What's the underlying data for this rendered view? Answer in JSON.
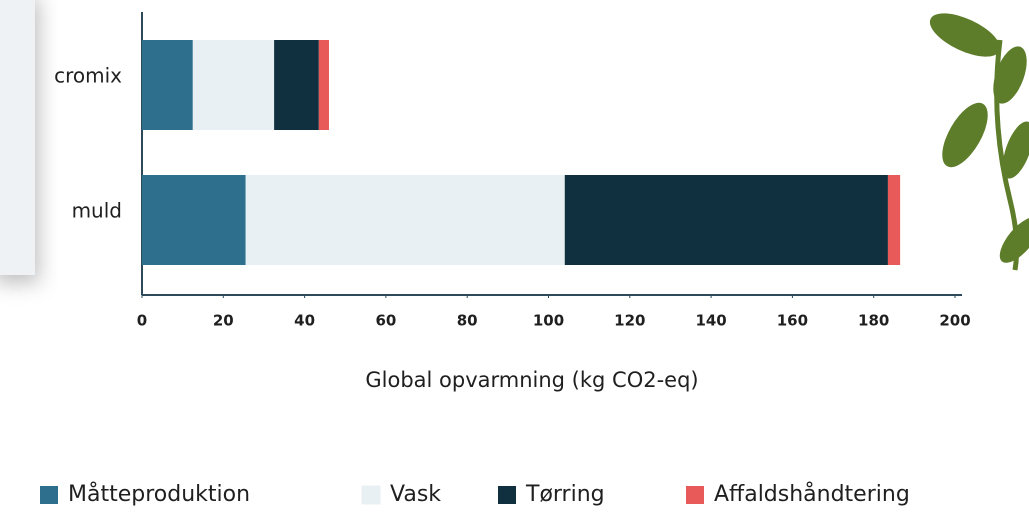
{
  "chart_data": {
    "type": "stacked-barh",
    "categories": [
      "cromix",
      "muld"
    ],
    "series": [
      {
        "name": "Måtteproduktion",
        "color": "#2e6f8e",
        "values": [
          12.5,
          25.5
        ]
      },
      {
        "name": "Vask",
        "color": "#e9f0f3",
        "values": [
          20,
          78.5
        ]
      },
      {
        "name": "Tørring",
        "color": "#11303f",
        "values": [
          11,
          79.5
        ]
      },
      {
        "name": "Affaldshåndtering",
        "color": "#e85a5a",
        "values": [
          2.5,
          3
        ]
      }
    ],
    "x_label": "Global opvarmning (kg CO2-eq)",
    "xlim": [
      0,
      200
    ],
    "xticks": [
      0,
      20,
      40,
      60,
      80,
      100,
      120,
      140,
      160,
      180,
      200
    ]
  }
}
